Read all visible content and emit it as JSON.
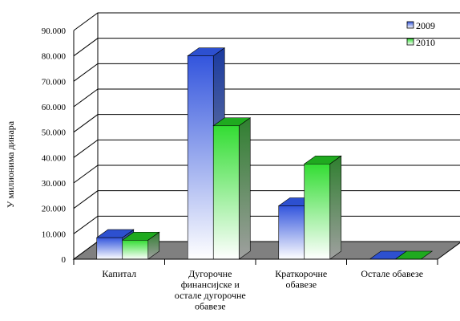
{
  "chart_data": {
    "type": "bar",
    "title": "",
    "xlabel": "",
    "ylabel": "У милионима динара",
    "ylim": [
      0,
      90000
    ],
    "ytick_values": [
      0,
      10000,
      20000,
      30000,
      40000,
      50000,
      60000,
      70000,
      80000,
      90000
    ],
    "ytick_labels": [
      "0",
      "10.000",
      "20.000",
      "30.000",
      "40.000",
      "50.000",
      "60.000",
      "70.000",
      "80.000",
      "90.000"
    ],
    "categories": [
      [
        "Капитал"
      ],
      [
        "Дугорочне",
        "финансијске и",
        "остале дугорочне",
        "обавезе"
      ],
      [
        "Краткорочне",
        "обавезе"
      ],
      [
        "Остале обавезе"
      ]
    ],
    "series": [
      {
        "name": "2009",
        "values": [
          8500,
          80000,
          21000,
          0
        ]
      },
      {
        "name": "2010",
        "values": [
          7500,
          52500,
          37500,
          0
        ]
      }
    ],
    "legend_position": "top-right",
    "grid": true,
    "three_d": true,
    "colors": {
      "s2009_top": "#3355dd",
      "s2009_bottom": "#ffffff",
      "s2009_face": "#4a6cf0",
      "s2009_side": "#1e3fb8",
      "s2009_cap": "#2d50d0",
      "s2010_top": "#33dd33",
      "s2010_bottom": "#ffffff",
      "s2010_face": "#22cc22",
      "s2010_side": "#3b9b3b",
      "s2010_cap": "#1faa1f",
      "floor": "#808080",
      "grid": "#000000"
    }
  }
}
